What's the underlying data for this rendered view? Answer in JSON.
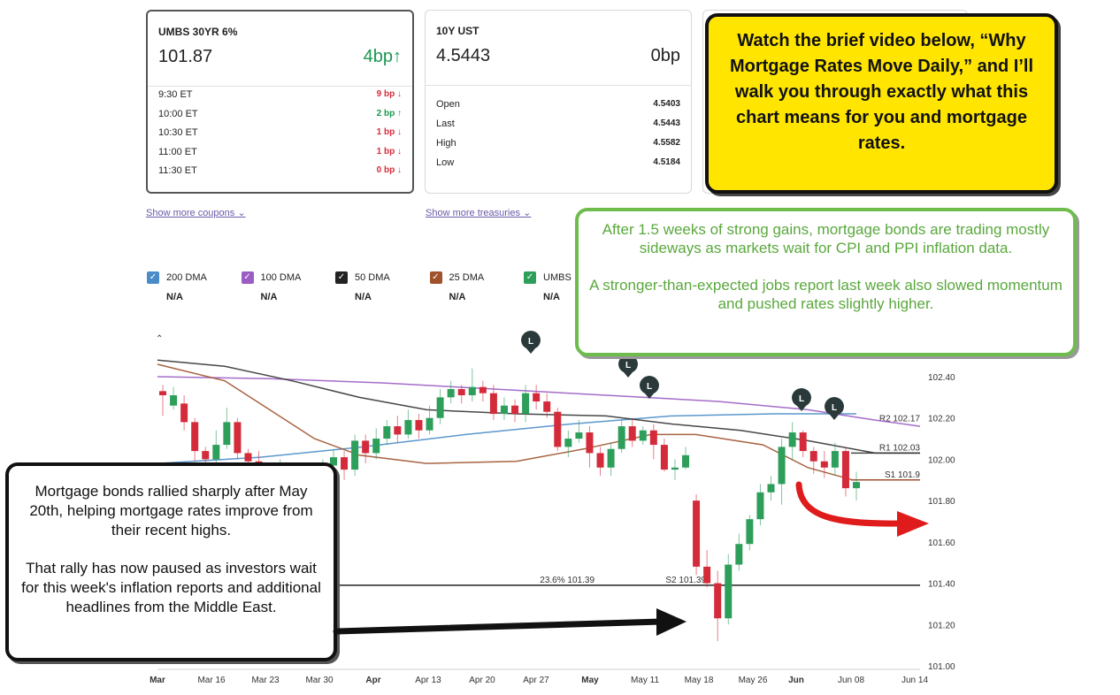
{
  "cards": {
    "umbs": {
      "title": "UMBS 30YR 6%",
      "price": "101.87",
      "change": "4bp",
      "rows": [
        {
          "label": "9:30 ET",
          "value": "9 bp",
          "dir": "down"
        },
        {
          "label": "10:00 ET",
          "value": "2 bp",
          "dir": "up"
        },
        {
          "label": "10:30 ET",
          "value": "1 bp",
          "dir": "down"
        },
        {
          "label": "11:00 ET",
          "value": "1 bp",
          "dir": "down"
        },
        {
          "label": "11:30 ET",
          "value": "0 bp",
          "dir": "down"
        }
      ],
      "show_more": "Show more coupons"
    },
    "ust": {
      "title": "10Y UST",
      "price": "4.5443",
      "change": "0bp",
      "rows": [
        {
          "label": "Open",
          "value": "4.5403"
        },
        {
          "label": "Last",
          "value": "4.5443"
        },
        {
          "label": "High",
          "value": "4.5582"
        },
        {
          "label": "Low",
          "value": "4.5184"
        }
      ],
      "show_more": "Show more treasuries"
    }
  },
  "legend": [
    {
      "name": "200 DMA",
      "value": "N/A",
      "color": "#4a8cc9"
    },
    {
      "name": "100 DMA",
      "value": "N/A",
      "color": "#9b5cc4"
    },
    {
      "name": "50 DMA",
      "value": "N/A",
      "color": "#222222"
    },
    {
      "name": "25 DMA",
      "value": "N/A",
      "color": "#a0522d"
    },
    {
      "name": "UMBS",
      "value": "N/A",
      "color": "#2e9e5b"
    }
  ],
  "callouts": {
    "yellow": "Watch the brief video below, “Why Mortgage Rates Move Daily,” and I’ll walk you through exactly what this chart means for you and mortgage rates.",
    "green_p1": "After 1.5 weeks of strong gains, mortgage bonds are trading mostly sideways as markets wait for CPI and PPI inflation data.",
    "green_p2": "A stronger-than-expected jobs report last week also slowed momentum and pushed rates slightly higher.",
    "black_p1": "Mortgage bonds rallied sharply after May 20th, helping mortgage rates improve from their recent highs.",
    "black_p2": "That rally has now paused as investors wait for this week's inflation reports and additional headlines from the Middle East."
  },
  "colors": {
    "up": "#2e9e5b",
    "down": "#d42b3a",
    "yellow": "#ffe500",
    "green_border": "#6ebd4c"
  },
  "chart_data": {
    "type": "candlestick",
    "title": "",
    "x_ticks": [
      "Mar",
      "Mar 16",
      "Mar 23",
      "Mar 30",
      "Apr",
      "Apr 13",
      "Apr 20",
      "Apr 27",
      "May",
      "May 11",
      "May 18",
      "May 26",
      "Jun",
      "Jun 08",
      "Jun 14"
    ],
    "y_ticks": [
      "102.40",
      "102.20",
      "102.00",
      "101.80",
      "101.60",
      "101.40",
      "101.20",
      "101.00"
    ],
    "ylim": [
      101.0,
      102.4
    ],
    "levels": [
      {
        "label": "R2 102.17",
        "value": 102.17
      },
      {
        "label": "R1 102.03",
        "value": 102.03
      },
      {
        "label": "S1 101.9",
        "value": 101.9
      },
      {
        "label": "S2 101.39",
        "value": 101.39
      },
      {
        "label": "23.6% 101.39",
        "value": 101.39
      }
    ],
    "markers": [
      "L",
      "L",
      "L",
      "L",
      "L",
      "L"
    ],
    "candles": [
      [
        102.33,
        102.31,
        102.36,
        102.21
      ],
      [
        102.26,
        102.31,
        102.35,
        102.24
      ],
      [
        102.27,
        102.18,
        102.31,
        102.14
      ],
      [
        102.18,
        102.04,
        102.2,
        101.99
      ],
      [
        102.04,
        102.0,
        102.06,
        101.93
      ],
      [
        102.0,
        102.07,
        102.14,
        101.95
      ],
      [
        102.07,
        102.18,
        102.25,
        102.05
      ],
      [
        102.18,
        102.03,
        102.2,
        102.0
      ],
      [
        102.03,
        101.99,
        102.05,
        101.94
      ],
      [
        101.99,
        101.96,
        102.04,
        101.92
      ],
      [
        101.96,
        101.9,
        101.98,
        101.86
      ],
      [
        101.9,
        101.93,
        102.0,
        101.85
      ],
      [
        101.93,
        101.91,
        101.98,
        101.84
      ],
      [
        101.91,
        101.87,
        101.95,
        101.82
      ],
      [
        101.87,
        101.93,
        101.96,
        101.85
      ],
      [
        101.93,
        101.97,
        102.0,
        101.9
      ],
      [
        101.97,
        102.01,
        102.05,
        101.95
      ],
      [
        102.01,
        101.95,
        102.04,
        101.9
      ],
      [
        101.95,
        102.09,
        102.12,
        101.92
      ],
      [
        102.09,
        102.03,
        102.12,
        101.98
      ],
      [
        102.03,
        102.1,
        102.15,
        102.0
      ],
      [
        102.1,
        102.16,
        102.19,
        102.07
      ],
      [
        102.16,
        102.12,
        102.21,
        102.08
      ],
      [
        102.12,
        102.19,
        102.24,
        102.1
      ],
      [
        102.19,
        102.14,
        102.22,
        102.1
      ],
      [
        102.14,
        102.2,
        102.26,
        102.12
      ],
      [
        102.2,
        102.3,
        102.34,
        102.17
      ],
      [
        102.3,
        102.34,
        102.38,
        102.27
      ],
      [
        102.34,
        102.31,
        102.36,
        102.27
      ],
      [
        102.31,
        102.35,
        102.44,
        102.28
      ],
      [
        102.35,
        102.32,
        102.38,
        102.28
      ],
      [
        102.32,
        102.22,
        102.36,
        102.19
      ],
      [
        102.22,
        102.26,
        102.3,
        102.19
      ],
      [
        102.26,
        102.22,
        102.29,
        102.18
      ],
      [
        102.22,
        102.32,
        102.36,
        102.18
      ],
      [
        102.32,
        102.28,
        102.36,
        102.24
      ],
      [
        102.28,
        102.23,
        102.32,
        102.2
      ],
      [
        102.23,
        102.06,
        102.25,
        102.04
      ],
      [
        102.06,
        102.1,
        102.14,
        102.01
      ],
      [
        102.1,
        102.13,
        102.19,
        102.08
      ],
      [
        102.13,
        102.03,
        102.16,
        101.96
      ],
      [
        102.03,
        101.96,
        102.06,
        101.92
      ],
      [
        101.96,
        102.05,
        102.08,
        101.92
      ],
      [
        102.05,
        102.16,
        102.19,
        102.03
      ],
      [
        102.16,
        102.09,
        102.2,
        102.06
      ],
      [
        102.09,
        102.14,
        102.16,
        102.07
      ],
      [
        102.14,
        102.07,
        102.17,
        102.0
      ],
      [
        102.07,
        101.95,
        102.1,
        101.94
      ],
      [
        101.95,
        101.96,
        102.0,
        101.9
      ],
      [
        101.96,
        102.02,
        102.06,
        101.95
      ],
      [
        101.8,
        101.48,
        101.83,
        101.44
      ],
      [
        101.48,
        101.4,
        101.56,
        101.38
      ],
      [
        101.4,
        101.23,
        101.46,
        101.12
      ],
      [
        101.23,
        101.49,
        101.54,
        101.2
      ],
      [
        101.49,
        101.59,
        101.64,
        101.46
      ],
      [
        101.59,
        101.71,
        101.73,
        101.56
      ],
      [
        101.71,
        101.84,
        101.88,
        101.68
      ],
      [
        101.84,
        101.88,
        101.92,
        101.8
      ],
      [
        101.88,
        102.06,
        102.1,
        101.78
      ],
      [
        102.06,
        102.13,
        102.18,
        102.0
      ],
      [
        102.13,
        102.04,
        102.14,
        102.01
      ],
      [
        102.04,
        101.99,
        102.06,
        101.93
      ],
      [
        101.99,
        101.96,
        102.04,
        101.91
      ],
      [
        101.96,
        102.04,
        102.08,
        101.92
      ],
      [
        102.04,
        101.86,
        102.06,
        101.82
      ],
      [
        101.86,
        101.89,
        101.94,
        101.8
      ]
    ],
    "series": [
      {
        "name": "200 DMA",
        "values": [
          [
            0,
            101.98
          ],
          [
            10,
            102.01
          ],
          [
            20,
            102.06
          ],
          [
            30,
            102.12
          ],
          [
            40,
            102.17
          ],
          [
            50,
            102.21
          ],
          [
            60,
            102.22
          ],
          [
            68,
            102.22
          ]
        ]
      },
      {
        "name": "100 DMA",
        "values": [
          [
            0,
            102.4
          ],
          [
            10,
            102.39
          ],
          [
            20,
            102.37
          ],
          [
            30,
            102.34
          ],
          [
            40,
            102.31
          ],
          [
            50,
            102.28
          ],
          [
            58,
            102.24
          ],
          [
            64,
            102.19
          ],
          [
            68,
            102.16
          ]
        ]
      },
      {
        "name": "50 DMA",
        "values": [
          [
            0,
            102.48
          ],
          [
            6,
            102.45
          ],
          [
            12,
            102.38
          ],
          [
            18,
            102.3
          ],
          [
            24,
            102.24
          ],
          [
            32,
            102.22
          ],
          [
            40,
            102.21
          ],
          [
            46,
            102.17
          ],
          [
            52,
            102.14
          ],
          [
            58,
            102.09
          ],
          [
            64,
            102.03
          ],
          [
            68,
            102.03
          ]
        ]
      },
      {
        "name": "25 DMA",
        "values": [
          [
            0,
            102.46
          ],
          [
            6,
            102.38
          ],
          [
            10,
            102.24
          ],
          [
            14,
            102.1
          ],
          [
            18,
            102.02
          ],
          [
            24,
            101.98
          ],
          [
            32,
            101.99
          ],
          [
            38,
            102.05
          ],
          [
            44,
            102.12
          ],
          [
            48,
            102.12
          ],
          [
            54,
            102.07
          ],
          [
            58,
            101.96
          ],
          [
            62,
            101.9
          ],
          [
            68,
            101.9
          ]
        ]
      }
    ]
  }
}
